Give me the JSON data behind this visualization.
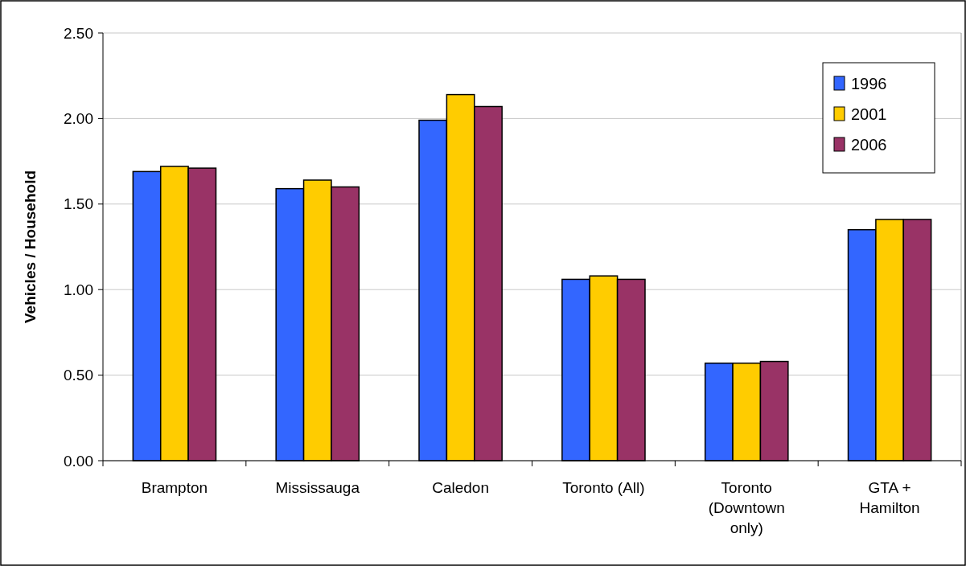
{
  "chart_data": {
    "type": "bar",
    "ylabel": "Vehicles / Household",
    "categories": [
      "Brampton",
      "Mississauga",
      "Caledon",
      "Toronto (All)",
      "Toronto (Downtown only)",
      "GTA + Hamilton"
    ],
    "series": [
      {
        "name": "1996",
        "color": "#3366ff",
        "values": [
          1.69,
          1.59,
          1.99,
          1.06,
          0.57,
          1.35
        ]
      },
      {
        "name": "2001",
        "color": "#ffcc00",
        "values": [
          1.72,
          1.64,
          2.14,
          1.08,
          0.57,
          1.41
        ]
      },
      {
        "name": "2006",
        "color": "#993366",
        "values": [
          1.71,
          1.6,
          2.07,
          1.06,
          0.58,
          1.41
        ]
      }
    ],
    "ylim": [
      0,
      2.5
    ],
    "yticks": [
      {
        "value": 0,
        "label": "0.00"
      },
      {
        "value": 0.5,
        "label": "0.50"
      },
      {
        "value": 1,
        "label": "1.00"
      },
      {
        "value": 1.5,
        "label": "1.50"
      },
      {
        "value": 2,
        "label": "2.00"
      },
      {
        "value": 2.5,
        "label": "2.50"
      }
    ],
    "grid": "y",
    "legend": "top right"
  }
}
